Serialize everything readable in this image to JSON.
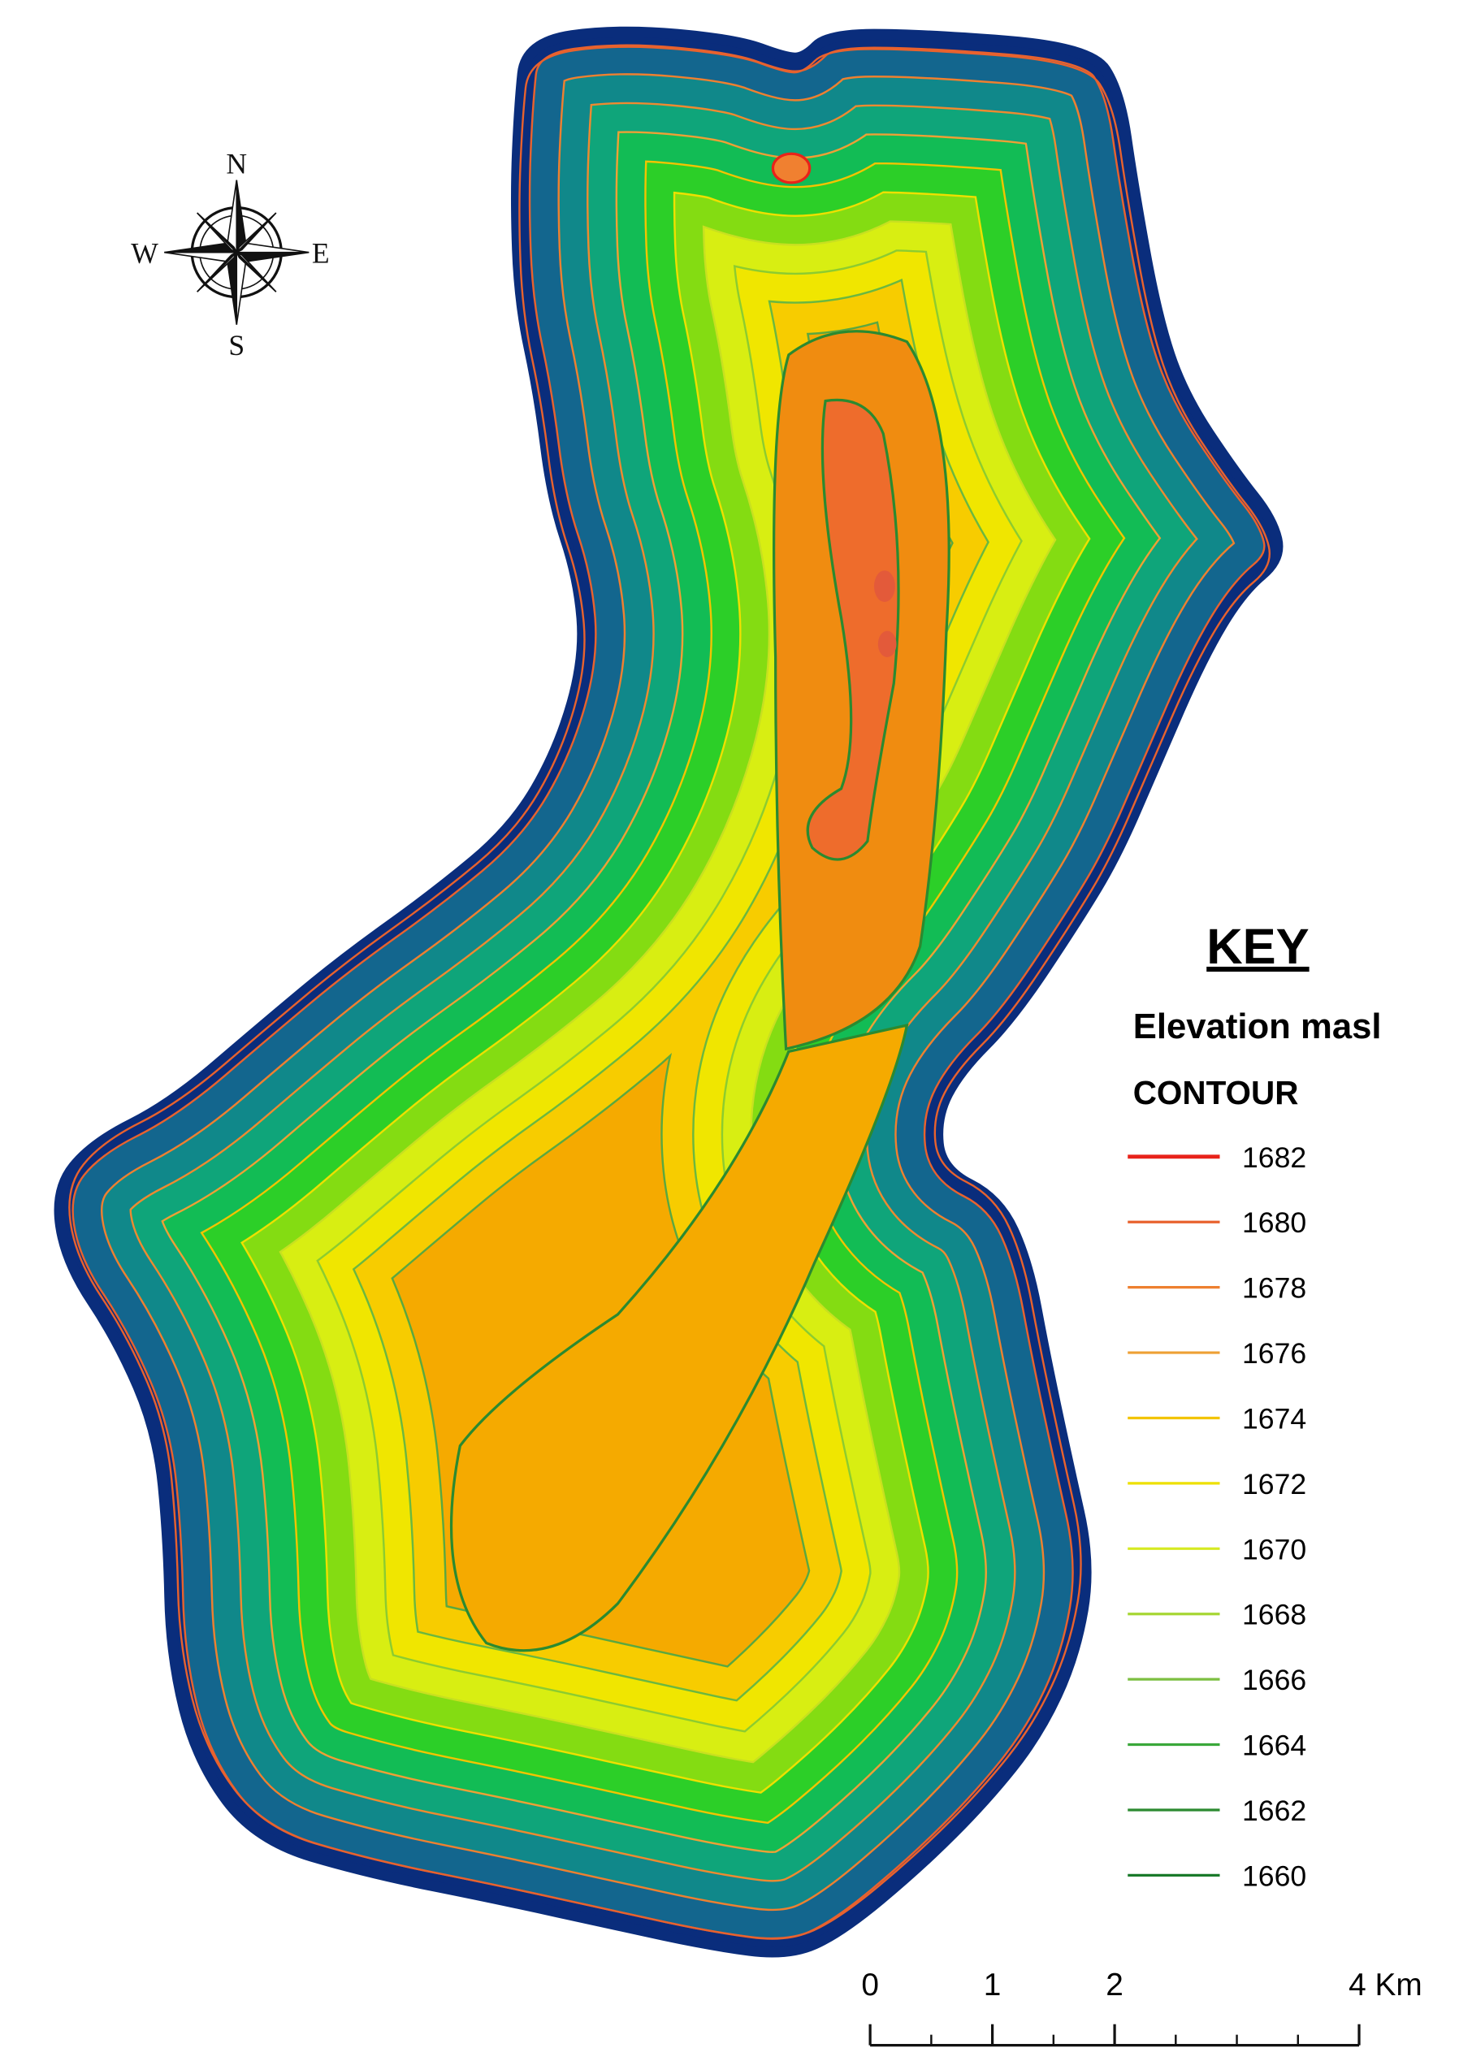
{
  "compass": {
    "north": "N",
    "south": "S",
    "east": "E",
    "west": "W"
  },
  "key": {
    "title": "KEY",
    "subtitle": "Elevation masl",
    "heading": "CONTOUR",
    "items": [
      {
        "label": 1682,
        "color": "#e8231a"
      },
      {
        "label": 1680,
        "color": "#e8622e"
      },
      {
        "label": 1678,
        "color": "#ee8030"
      },
      {
        "label": 1676,
        "color": "#eea035"
      },
      {
        "label": 1674,
        "color": "#f2c400"
      },
      {
        "label": 1672,
        "color": "#eee000"
      },
      {
        "label": 1670,
        "color": "#d6ea22"
      },
      {
        "label": 1668,
        "color": "#a6d634"
      },
      {
        "label": 1666,
        "color": "#7cbf40"
      },
      {
        "label": 1664,
        "color": "#3aa83a"
      },
      {
        "label": 1662,
        "color": "#2b8a30"
      },
      {
        "label": 1660,
        "color": "#1a7a2a"
      }
    ]
  },
  "scale_bar": {
    "ticks": [
      0,
      1,
      2,
      {
        "value": 4,
        "label": "4 Km"
      }
    ]
  }
}
